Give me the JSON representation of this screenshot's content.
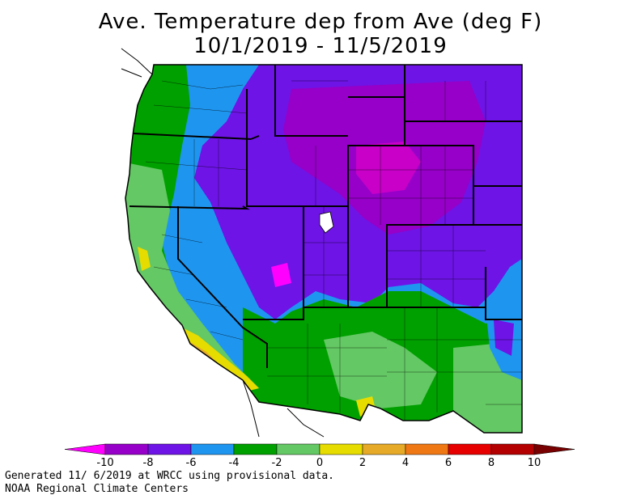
{
  "title_line1": "Ave. Temperature dep from Ave (deg F)",
  "title_line2": "10/1/2019 - 11/5/2019",
  "legend": {
    "ticks": [
      "-10",
      "-8",
      "-6",
      "-4",
      "-2",
      "0",
      "2",
      "4",
      "6",
      "8",
      "10"
    ],
    "colors": [
      "#ff00ff",
      "#9600c8",
      "#6e14e6",
      "#1e96f0",
      "#00a000",
      "#64c864",
      "#e6dc00",
      "#e6aa28",
      "#f07814",
      "#e60000",
      "#b40000",
      "#780000"
    ]
  },
  "footer_line1": "Generated 11/ 6/2019 at WRCC using provisional data.",
  "footer_line2": "NOAA Regional Climate Centers"
}
